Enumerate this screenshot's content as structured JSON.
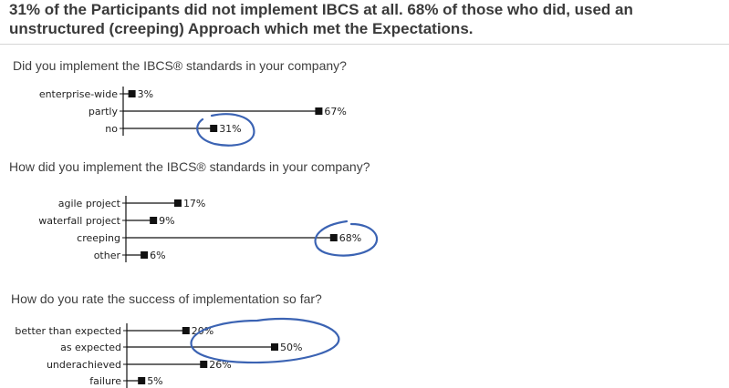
{
  "headline": "31% of the Participants did not implement IBCS at all. 68% of those who did, used an unstructured (creeping) Approach which met the Expectations.",
  "accent_color": "#3b63b3",
  "bar_color": "#111111",
  "chart_data": [
    {
      "type": "bar",
      "orientation": "horizontal",
      "title": "Did you implement the IBCS® standards in your company?",
      "categories": [
        "enterprise-wide",
        "partly",
        "no"
      ],
      "values": [
        3,
        67,
        31
      ],
      "labels": [
        "3%",
        "67%",
        "31%"
      ],
      "unit": "%",
      "highlight": "no"
    },
    {
      "type": "bar",
      "orientation": "horizontal",
      "title": "How did you implement the IBCS® standards in your company?",
      "categories": [
        "agile project",
        "waterfall project",
        "creeping",
        "other"
      ],
      "values": [
        17,
        9,
        68,
        6
      ],
      "labels": [
        "17%",
        "9%",
        "68%",
        "6%"
      ],
      "unit": "%",
      "highlight": "creeping"
    },
    {
      "type": "bar",
      "orientation": "horizontal",
      "title": "How do you rate the success of implementation so far?",
      "categories": [
        "better than expected",
        "as expected",
        "underachieved",
        "failure"
      ],
      "values": [
        20,
        50,
        26,
        5
      ],
      "labels": [
        "20%",
        "50%",
        "26%",
        "5%"
      ],
      "unit": "%",
      "highlight": "better than expected + as expected"
    }
  ]
}
